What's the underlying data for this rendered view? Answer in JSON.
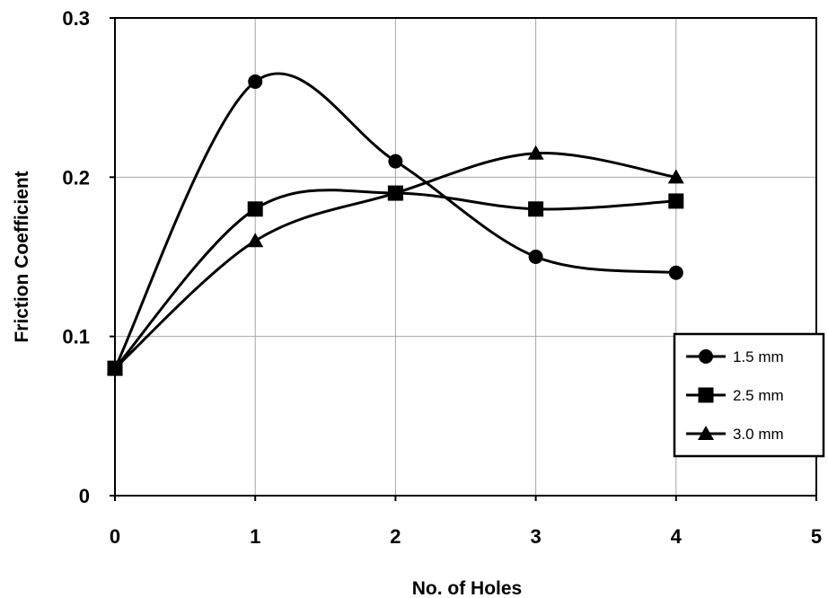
{
  "chart_data": {
    "type": "line",
    "title": "",
    "xlabel": "No. of Holes",
    "ylabel": "Friction Coefficient",
    "xlim": [
      0,
      5
    ],
    "ylim": [
      0,
      0.3
    ],
    "x_ticks": [
      0,
      1,
      2,
      3,
      4,
      5
    ],
    "y_ticks": [
      0,
      0.1,
      0.2,
      0.3
    ],
    "x_tick_labels": [
      "0",
      "1",
      "2",
      "3",
      "4",
      "5"
    ],
    "y_tick_labels": [
      "0",
      "0.1",
      "0.2",
      "0.3"
    ],
    "grid": true,
    "legend_position": "right",
    "smooth": true,
    "series": [
      {
        "name": "1.5 mm",
        "marker": "circle",
        "color": "#000000",
        "x": [
          0,
          1,
          2,
          3,
          4
        ],
        "y": [
          0.08,
          0.26,
          0.21,
          0.15,
          0.14
        ]
      },
      {
        "name": "2.5 mm",
        "marker": "square",
        "color": "#000000",
        "x": [
          0,
          1,
          2,
          3,
          4
        ],
        "y": [
          0.08,
          0.18,
          0.19,
          0.18,
          0.185
        ]
      },
      {
        "name": "3.0 mm",
        "marker": "triangle",
        "color": "#000000",
        "x": [
          0,
          1,
          2,
          3,
          4
        ],
        "y": [
          0.08,
          0.16,
          0.19,
          0.215,
          0.2
        ]
      }
    ]
  }
}
